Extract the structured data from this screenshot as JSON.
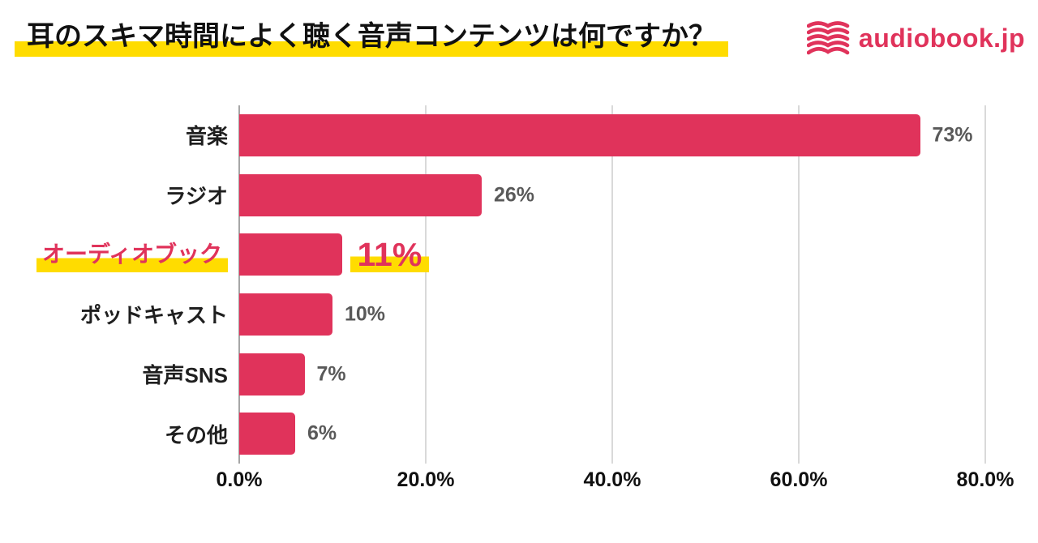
{
  "header": {
    "title": "耳のスキマ時間によく聴く音声コンテンツは何ですか？",
    "logo": {
      "icon": "book-waves-icon",
      "text": "audiobook.jp"
    }
  },
  "colors": {
    "background": "#FFFFFF",
    "bar_pink": "#E0335B",
    "brand_pink": "#E0335B",
    "highlight_yellow": "#FFDC00",
    "category_text": "#1F1F1F",
    "value_text": "#595959",
    "axis_line": "#A6A6A6",
    "gridline": "#D9D9D9",
    "tick_text": "#111111"
  },
  "chart_data": {
    "type": "bar",
    "orientation": "horizontal",
    "title": "耳のスキマ時間によく聴く音声コンテンツは何ですか？",
    "categories": [
      "音楽",
      "ラジオ",
      "オーディオブック",
      "ポッドキャスト",
      "音声SNS",
      "その他"
    ],
    "values": [
      73,
      26,
      11,
      10,
      7,
      6
    ],
    "value_labels": [
      "73%",
      "26%",
      "11%",
      "10%",
      "7%",
      "6%"
    ],
    "highlighted_index": 2,
    "highlighted_category": "オーディオブック",
    "xlim": [
      0,
      80
    ],
    "x_ticks": [
      0,
      20,
      40,
      60,
      80
    ],
    "x_tick_labels": [
      "0.0%",
      "20.0%",
      "40.0%",
      "60.0%",
      "80.0%"
    ],
    "grid": true,
    "legend_position": "none"
  }
}
